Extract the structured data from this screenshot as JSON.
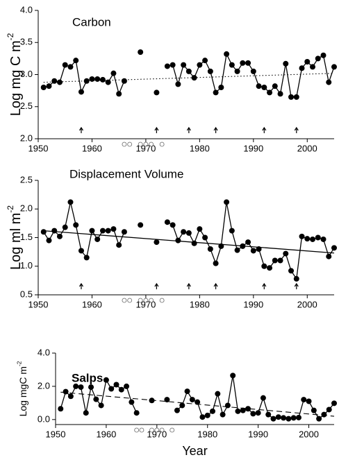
{
  "chart_data": [
    {
      "type": "line",
      "title": "Carbon",
      "ylabel": "Log  mg C m",
      "ylabel_sup": "-2",
      "color": "#000000",
      "x": [
        1951,
        1952,
        1953,
        1954,
        1955,
        1956,
        1957,
        1958,
        1959,
        1960,
        1961,
        1962,
        1963,
        1964,
        1965,
        1966,
        1967,
        1968,
        1969,
        1970,
        1971,
        1972,
        1973,
        1974,
        1975,
        1976,
        1977,
        1978,
        1979,
        1980,
        1981,
        1982,
        1983,
        1984,
        1985,
        1986,
        1987,
        1988,
        1989,
        1990,
        1991,
        1992,
        1993,
        1994,
        1995,
        1996,
        1997,
        1998,
        1999,
        2000,
        2001,
        2002,
        2003,
        2004,
        2005
      ],
      "values": [
        2.8,
        2.82,
        2.9,
        2.88,
        3.15,
        3.12,
        3.22,
        2.73,
        2.9,
        2.93,
        2.93,
        2.92,
        2.88,
        3.02,
        2.7,
        2.9,
        null,
        null,
        3.35,
        null,
        null,
        2.72,
        null,
        3.13,
        3.15,
        2.85,
        3.15,
        3.05,
        2.95,
        3.15,
        3.22,
        3.05,
        2.72,
        2.8,
        3.32,
        3.15,
        3.05,
        3.18,
        3.18,
        3.05,
        2.82,
        2.8,
        2.72,
        2.82,
        2.7,
        3.17,
        2.65,
        2.65,
        3.1,
        3.2,
        3.12,
        3.25,
        3.3,
        2.88,
        3.12
      ],
      "trend": {
        "style": "dotted",
        "x": [
          1951,
          2005
        ],
        "values": [
          2.88,
          3.02
        ]
      },
      "arrow_years": [
        1958,
        1972,
        1978,
        1983,
        1992,
        1998
      ],
      "open_circle_years": [
        1966,
        1967,
        1969,
        1970,
        1971,
        1973
      ],
      "xlim": [
        1950,
        2005
      ],
      "xticks": [
        1950,
        1960,
        1970,
        1980,
        1990,
        2000
      ],
      "ylim": [
        2.0,
        4.0
      ],
      "yticks": [
        {
          "value": 2,
          "label": "2.0"
        },
        {
          "value": 2.5,
          "label": "2.5"
        },
        {
          "value": 3,
          "label": "3.0"
        },
        {
          "value": 3.5,
          "label": "3.5"
        },
        {
          "value": 4,
          "label": "4.0"
        }
      ]
    },
    {
      "type": "line",
      "title": "Displacement Volume",
      "ylabel": "Log  ml m",
      "ylabel_sup": "-2",
      "color": "#000000",
      "x": [
        1951,
        1952,
        1953,
        1954,
        1955,
        1956,
        1957,
        1958,
        1959,
        1960,
        1961,
        1962,
        1963,
        1964,
        1965,
        1966,
        1967,
        1968,
        1969,
        1970,
        1971,
        1972,
        1973,
        1974,
        1975,
        1976,
        1977,
        1978,
        1979,
        1980,
        1981,
        1982,
        1983,
        1984,
        1985,
        1986,
        1987,
        1988,
        1989,
        1990,
        1991,
        1992,
        1993,
        1994,
        1995,
        1996,
        1997,
        1998,
        1999,
        2000,
        2001,
        2002,
        2003,
        2004,
        2005
      ],
      "values": [
        1.6,
        1.45,
        1.62,
        1.52,
        1.68,
        2.12,
        1.72,
        1.27,
        1.15,
        1.62,
        1.47,
        1.62,
        1.62,
        1.65,
        1.37,
        1.6,
        null,
        null,
        1.72,
        null,
        null,
        1.42,
        null,
        1.77,
        1.72,
        1.45,
        1.6,
        1.58,
        1.4,
        1.65,
        1.5,
        1.3,
        1.05,
        1.35,
        2.12,
        1.62,
        1.28,
        1.35,
        1.42,
        1.27,
        1.3,
        1.0,
        0.97,
        1.1,
        1.1,
        1.22,
        0.92,
        0.78,
        1.52,
        1.48,
        1.47,
        1.5,
        1.47,
        1.17,
        1.32
      ],
      "trend": {
        "style": "solid",
        "x": [
          1951,
          2005
        ],
        "values": [
          1.62,
          1.23
        ]
      },
      "arrow_years": [
        1958,
        1972,
        1978,
        1983,
        1992,
        1998
      ],
      "open_circle_years": [
        1966,
        1967,
        1969,
        1970,
        1971,
        1973
      ],
      "xlim": [
        1950,
        2005
      ],
      "xticks": [
        1950,
        1960,
        1970,
        1980,
        1990,
        2000
      ],
      "ylim": [
        0.5,
        2.5
      ],
      "yticks": [
        {
          "value": 0.5,
          "label": "0.5"
        },
        {
          "value": 1,
          "label": "1.0"
        },
        {
          "value": 1.5,
          "label": "1.5"
        },
        {
          "value": 2,
          "label": "2.0"
        },
        {
          "value": 2.5,
          "label": "2.5"
        }
      ]
    },
    {
      "type": "line",
      "title": "Salps",
      "ylabel": "Log mgC m",
      "ylabel_sup": "-2",
      "xlabel": "Year",
      "color": "#000000",
      "x": [
        1951,
        1952,
        1953,
        1954,
        1955,
        1956,
        1957,
        1958,
        1959,
        1960,
        1961,
        1962,
        1963,
        1964,
        1965,
        1966,
        1967,
        1968,
        1969,
        1970,
        1971,
        1972,
        1973,
        1974,
        1975,
        1976,
        1977,
        1978,
        1979,
        1980,
        1981,
        1982,
        1983,
        1984,
        1985,
        1986,
        1987,
        1988,
        1989,
        1990,
        1991,
        1992,
        1993,
        1994,
        1995,
        1996,
        1997,
        1998,
        1999,
        2000,
        2001,
        2002,
        2003,
        2004,
        2005
      ],
      "values": [
        0.65,
        1.68,
        1.4,
        2.0,
        1.95,
        0.4,
        1.95,
        1.22,
        0.85,
        2.38,
        1.85,
        2.1,
        1.8,
        2.0,
        1.05,
        0.4,
        null,
        null,
        1.15,
        null,
        null,
        1.2,
        null,
        0.55,
        0.85,
        1.7,
        1.2,
        1.05,
        0.15,
        0.25,
        0.5,
        1.55,
        0.3,
        0.85,
        2.65,
        0.5,
        0.55,
        0.65,
        0.35,
        0.4,
        1.3,
        0.3,
        0.05,
        0.15,
        0.1,
        0.05,
        0.1,
        0.12,
        1.2,
        1.1,
        0.55,
        0.05,
        0.3,
        0.6,
        0.98
      ],
      "trend": {
        "style": "dashed",
        "x": [
          1951,
          2005
        ],
        "values": [
          1.65,
          0.2
        ]
      },
      "open_circle_years": [
        1966,
        1967,
        1969,
        1970,
        1971,
        1973
      ],
      "xlim": [
        1950,
        2005
      ],
      "xticks": [
        1950,
        1960,
        1970,
        1980,
        1990,
        2000
      ],
      "ylim": [
        -0.3,
        4.0
      ],
      "yticks": [
        {
          "value": 0,
          "label": "0.0"
        },
        {
          "value": 2,
          "label": "2.0"
        },
        {
          "value": 4,
          "label": "4.0"
        }
      ]
    }
  ]
}
